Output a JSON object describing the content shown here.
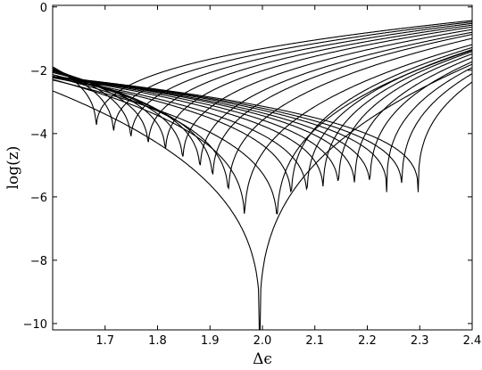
{
  "chart_data": {
    "type": "line",
    "xlabel": "Δϵ",
    "ylabel": "log(z)",
    "xlim": [
      1.6,
      2.4
    ],
    "ylim": [
      -10.2,
      0.05
    ],
    "xticks": [
      "1.7",
      "1.8",
      "1.9",
      "2.0",
      "2.1",
      "2.2",
      "2.3",
      "2.4"
    ],
    "yticks": [
      "0",
      "-2",
      "-4",
      "-6",
      "-8",
      "-10"
    ],
    "grid": false,
    "legend": "none",
    "series_color": "#000000",
    "series": [
      {
        "minimum": [
          1.683,
          -4.0
        ]
      },
      {
        "minimum": [
          1.716,
          -4.2
        ]
      },
      {
        "minimum": [
          1.749,
          -4.4
        ]
      },
      {
        "minimum": [
          1.782,
          -4.6
        ]
      },
      {
        "minimum": [
          1.815,
          -4.8
        ]
      },
      {
        "minimum": [
          1.848,
          -5.1
        ]
      },
      {
        "minimum": [
          1.881,
          -5.4
        ]
      },
      {
        "minimum": [
          1.905,
          -5.7
        ]
      },
      {
        "minimum": [
          1.935,
          -6.2
        ]
      },
      {
        "minimum": [
          1.966,
          -7.0
        ]
      },
      {
        "minimum": [
          1.995,
          -10.2
        ]
      },
      {
        "minimum": [
          2.028,
          -7.1
        ]
      },
      {
        "minimum": [
          2.055,
          -6.3
        ]
      },
      {
        "minimum": [
          2.085,
          -6.2
        ]
      },
      {
        "minimum": [
          2.116,
          -6.0
        ]
      },
      {
        "minimum": [
          2.145,
          -5.9
        ]
      },
      {
        "minimum": [
          2.176,
          -5.85
        ]
      },
      {
        "minimum": [
          2.205,
          -5.85
        ]
      },
      {
        "minimum": [
          2.237,
          -5.85
        ]
      },
      {
        "minimum": [
          2.266,
          -5.85
        ]
      },
      {
        "minimum": [
          2.297,
          -5.85
        ]
      }
    ]
  }
}
